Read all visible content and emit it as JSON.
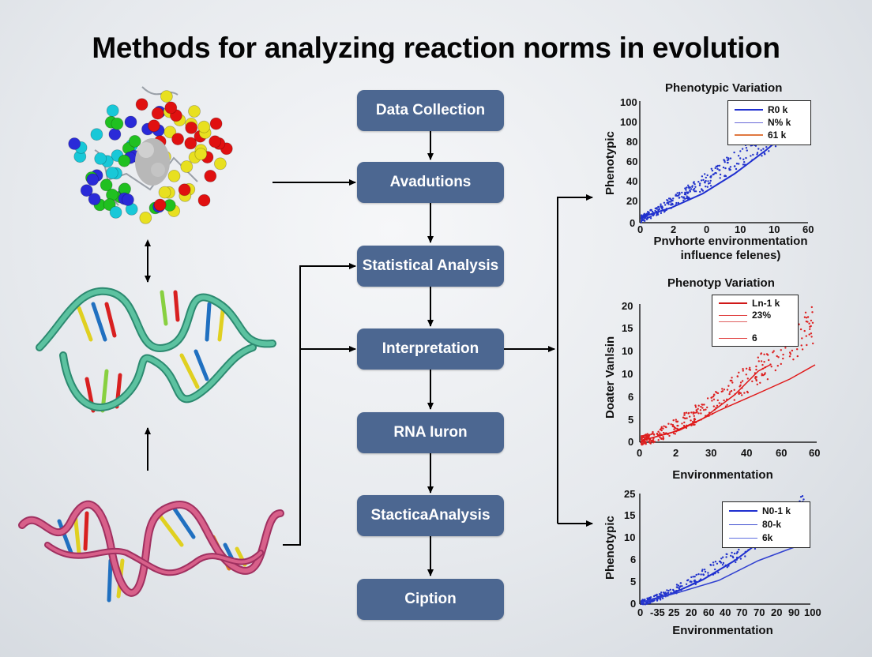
{
  "title": "Methods for analyzing reaction norms in evolution",
  "flowchart": {
    "steps": [
      {
        "label": "Data Collection"
      },
      {
        "label": "Avadutions"
      },
      {
        "label": "Statistical Analysis"
      },
      {
        "label": "Interpretation"
      },
      {
        "label": "RNA Iuron"
      },
      {
        "label": "StacticaAnalysis"
      },
      {
        "label": "Ciption"
      }
    ]
  },
  "illustrations": {
    "protein": "protein-molecule-ball-and-stick",
    "dna_green": "dna-double-helix-green",
    "dna_pink": "rna-helix-pink"
  },
  "colors": {
    "flow_box": "#4c6791",
    "chart1_series": "#1f2fd0",
    "chart2_series": "#e01818",
    "chart3_series": "#1f2fd0"
  },
  "chart_data": [
    {
      "type": "scatter",
      "title": "Phenotypic Variation",
      "xlabel": "Pnvhorte environmentation influence felenes)",
      "xlabel_line1": "Pnvhorte environmentation",
      "xlabel_line2": "influence felenes)",
      "ylabel": "Phenotypic",
      "x_ticks": [
        "0",
        "2",
        "0",
        "10",
        "10",
        "60"
      ],
      "y_ticks": [
        "0",
        "20",
        "40",
        "60",
        "80",
        "100",
        "100"
      ],
      "legend": [
        "R0 k",
        "N% k",
        "61 k"
      ],
      "series": [
        {
          "name": "R0 k",
          "x": [
            0,
            1,
            2,
            3,
            4,
            5
          ],
          "values": [
            5,
            15,
            30,
            50,
            75,
            100
          ]
        }
      ],
      "ylim": [
        0,
        110
      ]
    },
    {
      "type": "scatter",
      "title": "Phenotyp Variation",
      "xlabel": "Environmentation",
      "ylabel": "Doater Vanlsin",
      "x_ticks": [
        "0",
        "2",
        "30",
        "40",
        "60",
        "60"
      ],
      "y_ticks": [
        "0",
        "5",
        "6",
        "10",
        "10",
        "15",
        "20"
      ],
      "legend": [
        "Ln-1 k",
        "23%",
        "",
        "6"
      ],
      "series": [
        {
          "name": "Ln-1 k",
          "x": [
            0,
            1,
            2,
            3,
            4,
            5
          ],
          "values": [
            0,
            2,
            5,
            8,
            11,
            13
          ]
        },
        {
          "name": "23%",
          "x": [
            0,
            1,
            2,
            3,
            4,
            5
          ],
          "values": [
            0,
            2,
            4,
            6,
            8,
            10
          ]
        }
      ],
      "ylim": [
        0,
        20
      ]
    },
    {
      "type": "scatter",
      "title": "",
      "xlabel": "Environmentation",
      "ylabel": "Phenotypic",
      "x_ticks": [
        "0",
        "-35",
        "25",
        "20",
        "60",
        "40",
        "70",
        "70",
        "20",
        "90",
        "100"
      ],
      "y_ticks": [
        "0",
        "5",
        "6",
        "10",
        "15",
        "25"
      ],
      "legend": [
        "N0-1 k",
        "80-k",
        "6k"
      ],
      "series": [
        {
          "name": "N0-1 k",
          "x": [
            0,
            1,
            2,
            3,
            4,
            5
          ],
          "values": [
            0,
            2,
            5,
            9,
            13,
            17
          ]
        },
        {
          "name": "80-k",
          "x": [
            0,
            1,
            2,
            3,
            4,
            5
          ],
          "values": [
            0,
            1.5,
            3.5,
            5.5,
            8,
            10
          ]
        }
      ],
      "ylim": [
        0,
        20
      ]
    }
  ]
}
